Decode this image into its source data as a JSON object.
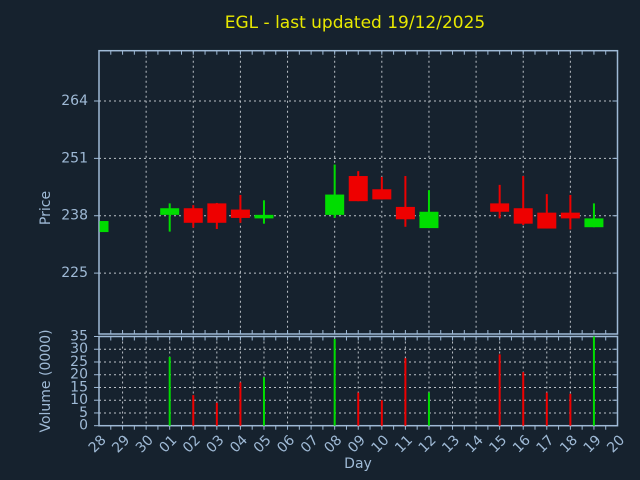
{
  "title": "EGL - last updated 19/12/2025",
  "colors": {
    "background": "#16222e",
    "axis_text": "#9fbad6",
    "border": "#9fbad6",
    "grid": "#bcc2c8",
    "title": "#e8e800",
    "up": "#00dd00",
    "down": "#ee0000"
  },
  "chart_data": [
    {
      "type": "candlestick",
      "title": "EGL - last updated 19/12/2025",
      "ylabel": "Price",
      "yticks": [
        225,
        238,
        251,
        264
      ],
      "ylim": [
        211.2,
        275.4
      ],
      "grid": "on",
      "categories": [
        "28",
        "29",
        "30",
        "01",
        "02",
        "03",
        "04",
        "05",
        "06",
        "07",
        "08",
        "09",
        "10",
        "11",
        "12",
        "13",
        "14",
        "15",
        "16",
        "17",
        "18",
        "19",
        "20"
      ],
      "candles": [
        {
          "day": "28",
          "open": 234.3,
          "high": 236.8,
          "low": 234.3,
          "close": 236.8
        },
        {
          "day": "01",
          "open": 238.2,
          "high": 240.8,
          "low": 234.4,
          "close": 239.7
        },
        {
          "day": "02",
          "open": 239.7,
          "high": 240.4,
          "low": 235.3,
          "close": 236.4
        },
        {
          "day": "03",
          "open": 240.8,
          "high": 240.9,
          "low": 235.0,
          "close": 236.4
        },
        {
          "day": "04",
          "open": 239.4,
          "high": 242.7,
          "low": 236.4,
          "close": 237.5
        },
        {
          "day": "05",
          "open": 237.4,
          "high": 241.5,
          "low": 236.2,
          "close": 238.2
        },
        {
          "day": "08",
          "open": 238.2,
          "high": 249.6,
          "low": 237.5,
          "close": 242.8
        },
        {
          "day": "09",
          "open": 247.0,
          "high": 248.1,
          "low": 241.3,
          "close": 241.3
        },
        {
          "day": "10",
          "open": 244.0,
          "high": 246.8,
          "low": 241.7,
          "close": 241.7
        },
        {
          "day": "11",
          "open": 240.0,
          "high": 247.0,
          "low": 235.5,
          "close": 237.2
        },
        {
          "day": "12",
          "open": 235.2,
          "high": 243.8,
          "low": 235.2,
          "close": 238.9
        },
        {
          "day": "15",
          "open": 240.8,
          "high": 245.0,
          "low": 237.4,
          "close": 238.9
        },
        {
          "day": "16",
          "open": 239.7,
          "high": 247.0,
          "low": 235.9,
          "close": 236.2
        },
        {
          "day": "17",
          "open": 238.7,
          "high": 242.9,
          "low": 235.1,
          "close": 235.1
        },
        {
          "day": "18",
          "open": 238.7,
          "high": 242.7,
          "low": 234.9,
          "close": 237.4
        },
        {
          "day": "19",
          "open": 235.4,
          "high": 240.8,
          "low": 235.4,
          "close": 237.4
        }
      ]
    },
    {
      "type": "bar",
      "ylabel": "Volume (0000)",
      "xlabel": "Day",
      "yticks": [
        0,
        5,
        10,
        15,
        20,
        25,
        30,
        35
      ],
      "ylim": [
        0,
        35
      ],
      "grid": "on",
      "categories": [
        "28",
        "29",
        "30",
        "01",
        "02",
        "03",
        "04",
        "05",
        "06",
        "07",
        "08",
        "09",
        "10",
        "11",
        "12",
        "13",
        "14",
        "15",
        "16",
        "17",
        "18",
        "19",
        "20"
      ],
      "bars": [
        {
          "day": "01",
          "value": 27,
          "direction": "up"
        },
        {
          "day": "02",
          "value": 12,
          "direction": "down"
        },
        {
          "day": "03",
          "value": 9,
          "direction": "down"
        },
        {
          "day": "04",
          "value": 17,
          "direction": "down"
        },
        {
          "day": "05",
          "value": 19,
          "direction": "up"
        },
        {
          "day": "08",
          "value": 34,
          "direction": "up"
        },
        {
          "day": "09",
          "value": 13,
          "direction": "down"
        },
        {
          "day": "10",
          "value": 10,
          "direction": "down"
        },
        {
          "day": "11",
          "value": 26.5,
          "direction": "down"
        },
        {
          "day": "12",
          "value": 13,
          "direction": "up"
        },
        {
          "day": "15",
          "value": 28,
          "direction": "down"
        },
        {
          "day": "16",
          "value": 21,
          "direction": "down"
        },
        {
          "day": "17",
          "value": 13,
          "direction": "down"
        },
        {
          "day": "18",
          "value": 12.5,
          "direction": "down"
        },
        {
          "day": "19",
          "value": 35,
          "direction": "up"
        }
      ]
    }
  ]
}
